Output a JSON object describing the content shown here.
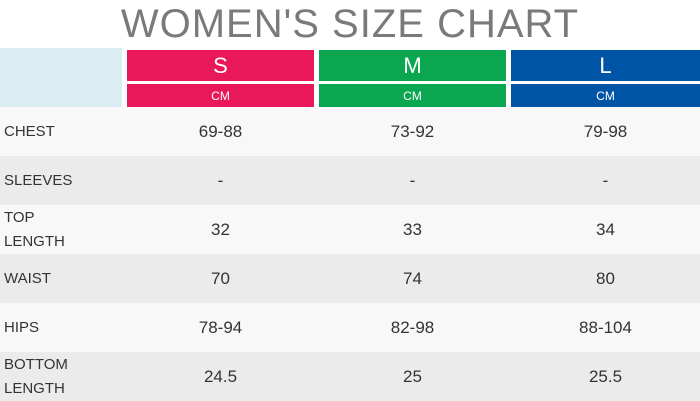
{
  "title": "WOMEN'S SIZE CHART",
  "sizes": [
    {
      "name": "S",
      "unit": "CM"
    },
    {
      "name": "M",
      "unit": "CM"
    },
    {
      "name": "L",
      "unit": "CM"
    }
  ],
  "rows": [
    {
      "label": "CHEST",
      "values": [
        "69-88",
        "73-92",
        "79-98"
      ]
    },
    {
      "label": "SLEEVES",
      "values": [
        "-",
        "-",
        "-"
      ]
    },
    {
      "label": "TOP LENGTH",
      "values": [
        32,
        33,
        34
      ]
    },
    {
      "label": "WAIST",
      "values": [
        70,
        74,
        80
      ]
    },
    {
      "label": "HIPS",
      "values": [
        "78-94",
        "82-98",
        "88-104"
      ]
    },
    {
      "label": "BOTTOM LENGTH",
      "values": [
        24.5,
        25,
        25.5
      ]
    }
  ]
}
